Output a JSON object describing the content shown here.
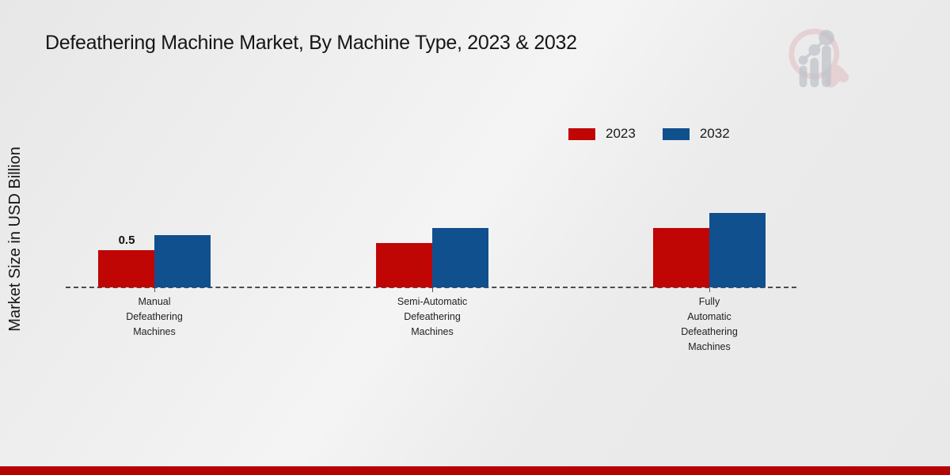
{
  "title": "Defeathering Machine Market, By Machine Type, 2023 & 2032",
  "ylabel": "Market Size in USD Billion",
  "colors": {
    "bar_2023": "#c00505",
    "bar_2032": "#10508e",
    "banner": "#b50404",
    "axis_dash": "#4c4c4c",
    "text": "#161616",
    "watermark_pink": "#dfaeb4",
    "watermark_gray": "#bfc3ca"
  },
  "legend": {
    "position": "top-right",
    "items": [
      {
        "label": "2023",
        "color": "#c00505"
      },
      {
        "label": "2032",
        "color": "#10508e"
      }
    ]
  },
  "icons": {
    "watermark": "magnifier-bar-chart-logo"
  },
  "chart_data": {
    "type": "bar",
    "title": "Defeathering Machine Market, By Machine Type, 2023 & 2032",
    "xlabel": "",
    "ylabel": "Market Size in USD Billion",
    "categories": [
      "Manual Defeathering Machines",
      "Semi-Automatic Defeathering Machines",
      "Fully Automatic Defeathering Machines"
    ],
    "category_lines": [
      [
        "Manual",
        "Defeathering",
        "Machines"
      ],
      [
        "Semi-Automatic",
        "Defeathering",
        "Machines"
      ],
      [
        "Fully",
        "Automatic",
        "Defeathering",
        "Machines"
      ]
    ],
    "series": [
      {
        "name": "2023",
        "color": "#c00505",
        "values": [
          0.5,
          0.6,
          0.8
        ]
      },
      {
        "name": "2032",
        "color": "#10508e",
        "values": [
          0.7,
          0.8,
          1.0
        ]
      }
    ],
    "bar_labels": [
      {
        "series": 0,
        "category": 0,
        "text": "0.5"
      }
    ],
    "ylim": [
      0,
      1.1
    ],
    "grid": false,
    "baseline_style": "dashed",
    "legend_position": "top-right"
  }
}
